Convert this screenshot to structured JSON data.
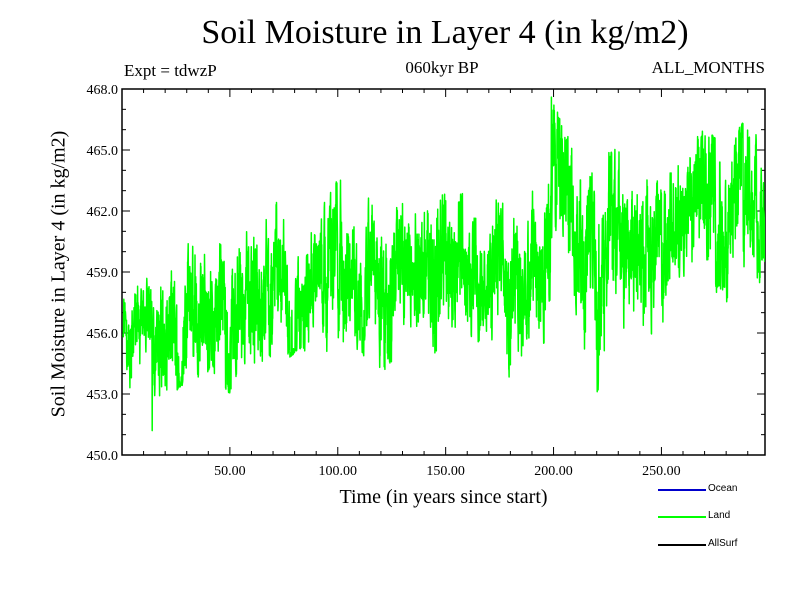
{
  "chart_data": {
    "type": "line",
    "title": "Soil Moisture in Layer 4 (in kg/m2)",
    "subtitle_left": "Expt = tdwzP",
    "subtitle_center": "060kyr BP",
    "subtitle_right": "ALL_MONTHS",
    "xlabel": "Time (in years since start)",
    "ylabel": "Soil Moisture in Layer 4 (in kg/m2)",
    "xlim": [
      0,
      298
    ],
    "ylim": [
      450.0,
      468.0
    ],
    "x_ticks": [
      50,
      100,
      150,
      200,
      250
    ],
    "x_tick_labels": [
      "50.00",
      "100.00",
      "150.00",
      "200.00",
      "250.00"
    ],
    "y_ticks": [
      450,
      453,
      456,
      459,
      462,
      465,
      468
    ],
    "y_tick_labels": [
      "450.0",
      "453.0",
      "456.0",
      "459.0",
      "462.0",
      "465.0",
      "468.0"
    ],
    "grid": false,
    "legend_position": "bottom-right",
    "series": [
      {
        "name": "Land",
        "color": "#00ff00",
        "x": [
          1,
          10,
          20,
          30,
          40,
          50,
          60,
          70,
          80,
          90,
          100,
          110,
          120,
          130,
          140,
          150,
          160,
          170,
          180,
          190,
          200,
          210,
          220,
          230,
          240,
          250,
          260,
          270,
          280,
          290,
          298
        ],
        "y": [
          455.8,
          455.5,
          456.5,
          457.3,
          457.5,
          456.8,
          457.0,
          457.5,
          458.0,
          458.6,
          458.5,
          458.8,
          459.0,
          459.4,
          459.3,
          459.5,
          459.0,
          459.3,
          458.5,
          459.2,
          460.0,
          460.2,
          459.3,
          459.8,
          460.4,
          460.2,
          460.6,
          460.4,
          460.9,
          461.3,
          461.6
        ],
        "upper_envelope": [
          458.3,
          458.5,
          460.8,
          462.3,
          462.0,
          461.5,
          461.5,
          462.3,
          463.3,
          462.5,
          463.7,
          463.0,
          463.4,
          463.7,
          464.4,
          464.8,
          463.2,
          463.1,
          463.3,
          463.1,
          467.3,
          465.0,
          464.2,
          465.4,
          465.0,
          466.3,
          465.3,
          466.0,
          465.6,
          466.6,
          466.0
        ],
        "lower_envelope": [
          453.5,
          452.7,
          452.8,
          453.5,
          454.1,
          453.0,
          453.0,
          454.0,
          455.0,
          455.2,
          454.0,
          455.2,
          453.5,
          455.6,
          455.3,
          454.6,
          455.6,
          455.5,
          453.5,
          455.3,
          455.5,
          455.4,
          452.2,
          456.0,
          455.5,
          456.3,
          456.5,
          456.6,
          456.0,
          457.4,
          458.7
        ],
        "min": {
          "x": 14,
          "y": 451.2
        },
        "max": {
          "x": 199,
          "y": 467.6
        }
      }
    ],
    "legend": [
      {
        "name": "Ocean",
        "color": "#0000cc"
      },
      {
        "name": "Land",
        "color": "#00ff00"
      },
      {
        "name": "AllSurf",
        "color": "#000000"
      }
    ]
  }
}
